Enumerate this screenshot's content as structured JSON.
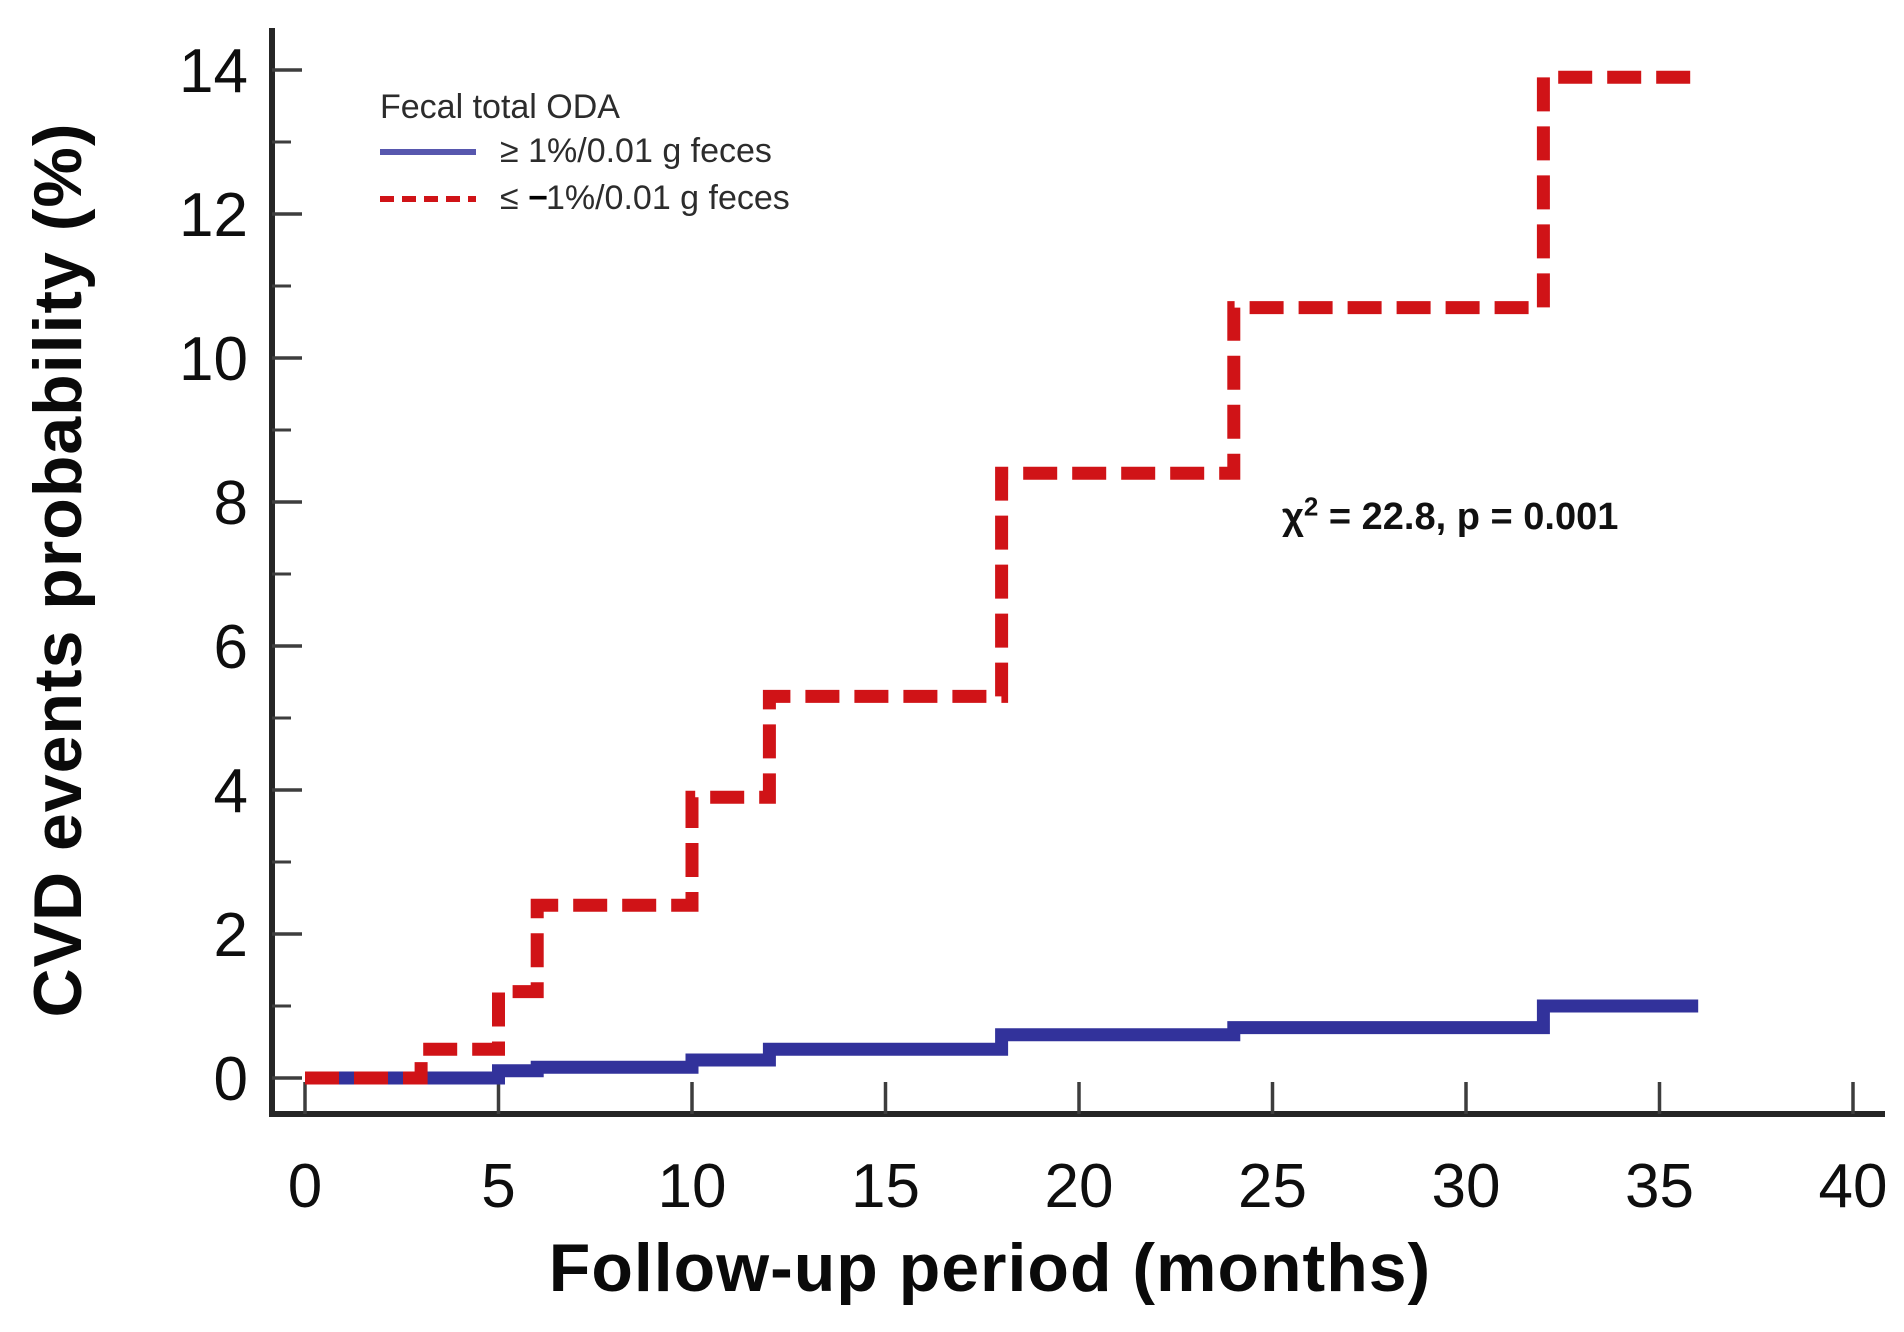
{
  "figure": {
    "x_axis_title": "Follow-up period (months)",
    "y_axis_title": "CVD events probability (%)",
    "legend": {
      "title": "Fecal total ODA",
      "item_high": "≥ 1%/0.01 g feces",
      "item_low_prefix": "≤ ",
      "item_low_minus": "−",
      "item_low_suffix": "1%/0.01 g feces"
    },
    "annotation": {
      "chi_symbol": "χ",
      "chi_exponent": "2",
      "stat_text": " = 22.8, p = 0.001"
    }
  },
  "chart_data": {
    "type": "line",
    "subtype": "kaplan-meier-step",
    "title": "",
    "xlabel": "Follow-up period (months)",
    "ylabel": "CVD events probability (%)",
    "xlim": [
      0,
      40
    ],
    "ylim": [
      0,
      14
    ],
    "grid": false,
    "legend_position": "top-left-inside",
    "x_ticks": [
      0,
      5,
      10,
      15,
      20,
      25,
      30,
      35,
      40
    ],
    "y_ticks": [
      0,
      2,
      4,
      6,
      8,
      10,
      12,
      14
    ],
    "y_minor_ticks": [
      1,
      3,
      5,
      7,
      9,
      11,
      13
    ],
    "stat_annotation": "χ2 = 22.8, p = 0.001",
    "series": [
      {
        "name": "≥ 1%/0.01 g feces",
        "color": "#32329b",
        "style": "solid",
        "line_width": 13,
        "step_points": [
          [
            0,
            0
          ],
          [
            5,
            0.1
          ],
          [
            6,
            0.15
          ],
          [
            10,
            0.25
          ],
          [
            12,
            0.4
          ],
          [
            18,
            0.6
          ],
          [
            24,
            0.7
          ],
          [
            32,
            1.0
          ]
        ],
        "end_x": 36
      },
      {
        "name": "≤ −1%/0.01 g feces",
        "color": "#d01317",
        "style": "dashed",
        "line_width": 13,
        "step_points": [
          [
            0,
            0
          ],
          [
            3,
            0.4
          ],
          [
            5,
            1.2
          ],
          [
            6,
            2.4
          ],
          [
            10,
            3.9
          ],
          [
            12,
            5.3
          ],
          [
            18,
            8.4
          ],
          [
            24,
            10.7
          ],
          [
            32,
            13.9
          ]
        ],
        "end_x": 36
      }
    ],
    "axis_colors": {
      "spine": "#262626",
      "tick": "#3d3d3d",
      "label": "#0e0e0e"
    }
  }
}
